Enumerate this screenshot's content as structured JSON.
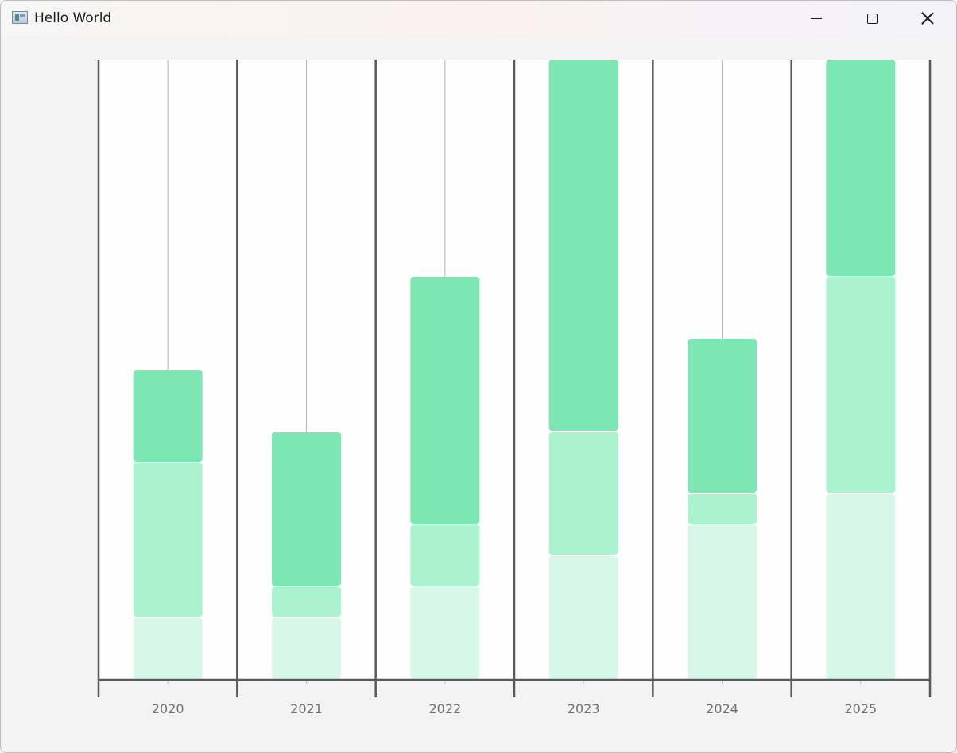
{
  "window": {
    "title": "Hello World",
    "icon": "app-window-icon",
    "controls": [
      "minimize-icon",
      "maximize-icon",
      "close-icon"
    ]
  },
  "colors": {
    "plot_background": "#fefefe",
    "axis": "#595959",
    "stem": "#bdbdbd",
    "segment_light": "#d7f7e8",
    "segment_mid": "#abf3cf",
    "segment_dark": "#7ce7b3",
    "tick_label": "#707070"
  },
  "chart_data": {
    "type": "bar",
    "stacked": true,
    "title": "",
    "xlabel": "",
    "ylabel": "",
    "categories": [
      "2020",
      "2021",
      "2022",
      "2023",
      "2024",
      "2025"
    ],
    "ylim": [
      0,
      10
    ],
    "yaxis_labels_shown": false,
    "grid": false,
    "legend": "none",
    "series": [
      {
        "color": "#d7f7e8",
        "values": [
          1,
          1,
          1.5,
          2,
          2.5,
          3
        ]
      },
      {
        "color": "#abf3cf",
        "values": [
          2.5,
          0.5,
          1,
          2,
          0.5,
          3.5
        ]
      },
      {
        "color": "#7ce7b3",
        "values": [
          1.5,
          2.5,
          4,
          6,
          2.5,
          3.5
        ]
      }
    ],
    "stems": [
      true,
      true,
      true,
      false,
      true,
      false
    ]
  }
}
